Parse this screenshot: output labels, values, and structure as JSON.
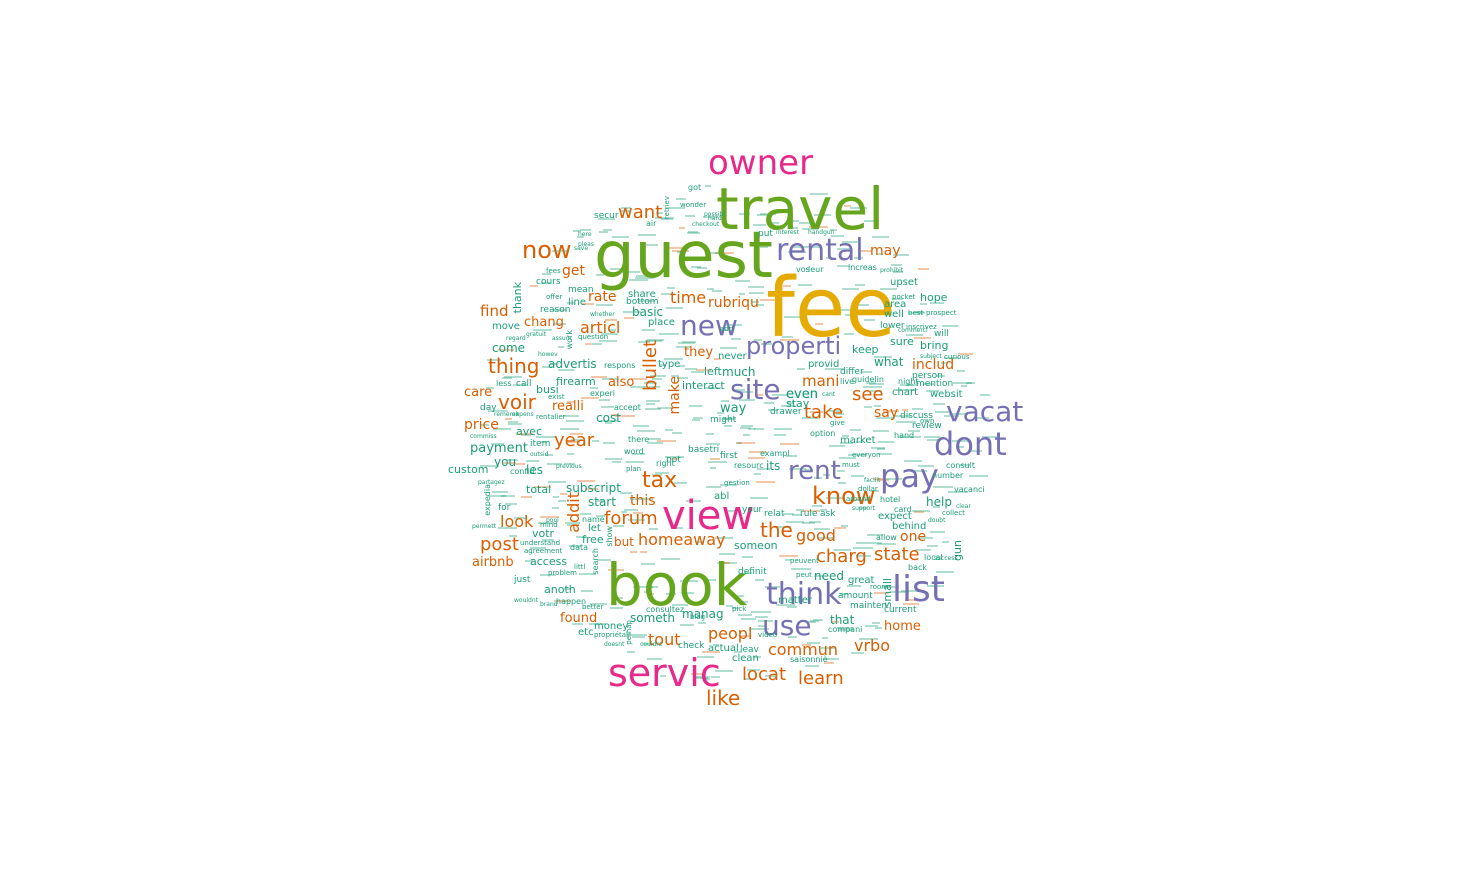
{
  "colors": {
    "teal": "#1b9e77",
    "orange": "#d95f02",
    "purple": "#7570b3",
    "pink": "#e7298a",
    "green": "#66a61e",
    "gold": "#e6ab02"
  },
  "words": [
    {
      "text": "fee",
      "tier": 5
    },
    {
      "text": "guest",
      "tier": 4
    },
    {
      "text": "travel",
      "tier": 4
    },
    {
      "text": "book",
      "tier": 4
    },
    {
      "text": "owner",
      "tier": 3
    },
    {
      "text": "view",
      "tier": 3
    },
    {
      "text": "servic",
      "tier": 3
    },
    {
      "text": "rental",
      "tier": 2
    },
    {
      "text": "new",
      "tier": 2
    },
    {
      "text": "properti",
      "tier": 2
    },
    {
      "text": "site",
      "tier": 2
    },
    {
      "text": "vacat",
      "tier": 2
    },
    {
      "text": "dont",
      "tier": 2
    },
    {
      "text": "pay",
      "tier": 2
    },
    {
      "text": "rent",
      "tier": 2
    },
    {
      "text": "list",
      "tier": 2
    },
    {
      "text": "think",
      "tier": 2
    },
    {
      "text": "use",
      "tier": 2
    },
    {
      "text": "know",
      "tier": 1
    },
    {
      "text": "now",
      "tier": 1
    },
    {
      "text": "want",
      "tier": 1
    },
    {
      "text": "thing",
      "tier": 1
    },
    {
      "text": "voir",
      "tier": 1
    },
    {
      "text": "tax",
      "tier": 1
    },
    {
      "text": "year",
      "tier": 1
    },
    {
      "text": "forum",
      "tier": 1
    },
    {
      "text": "homeaway",
      "tier": 1
    },
    {
      "text": "post",
      "tier": 1
    },
    {
      "text": "look",
      "tier": 1
    },
    {
      "text": "the",
      "tier": 1
    },
    {
      "text": "good",
      "tier": 1
    },
    {
      "text": "charg",
      "tier": 1
    },
    {
      "text": "state",
      "tier": 1
    },
    {
      "text": "vrbo",
      "tier": 1
    },
    {
      "text": "commun",
      "tier": 1
    },
    {
      "text": "peopl",
      "tier": 1
    },
    {
      "text": "locat",
      "tier": 1
    },
    {
      "text": "learn",
      "tier": 1
    },
    {
      "text": "like",
      "tier": 1
    },
    {
      "text": "tout",
      "tier": 1
    },
    {
      "text": "take",
      "tier": 1
    },
    {
      "text": "see",
      "tier": 1
    },
    {
      "text": "mani",
      "tier": 1
    },
    {
      "text": "time",
      "tier": 1
    },
    {
      "text": "rubriqu",
      "tier": 1
    },
    {
      "text": "articl",
      "tier": 1
    },
    {
      "text": "rate",
      "tier": 1
    },
    {
      "text": "get",
      "tier": 1
    },
    {
      "text": "find",
      "tier": 1
    },
    {
      "text": "chang",
      "tier": 1
    },
    {
      "text": "may",
      "tier": 1
    },
    {
      "text": "includ",
      "tier": 1
    },
    {
      "text": "price",
      "tier": 1
    },
    {
      "text": "care",
      "tier": 1
    },
    {
      "text": "they",
      "tier": 1
    },
    {
      "text": "say",
      "tier": 1
    },
    {
      "text": "bullet",
      "tier": 1
    },
    {
      "text": "addit",
      "tier": 1
    },
    {
      "text": "realli",
      "tier": 1
    },
    {
      "text": "also",
      "tier": 1
    },
    {
      "text": "make",
      "tier": 1
    },
    {
      "text": "one",
      "tier": 1
    },
    {
      "text": "airbnb",
      "tier": 1
    },
    {
      "text": "home",
      "tier": 1
    },
    {
      "text": "found",
      "tier": 1
    },
    {
      "text": "this",
      "tier": 1
    },
    {
      "text": "but",
      "tier": 1
    },
    {
      "text": "advertis",
      "tier": 0
    },
    {
      "text": "payment",
      "tier": 0
    },
    {
      "text": "firearm",
      "tier": 0
    },
    {
      "text": "subscript",
      "tier": 0
    },
    {
      "text": "someth",
      "tier": 0
    },
    {
      "text": "someon",
      "tier": 0
    },
    {
      "text": "manag",
      "tier": 0
    },
    {
      "text": "much",
      "tier": 0
    },
    {
      "text": "stay",
      "tier": 0
    },
    {
      "text": "even",
      "tier": 0
    },
    {
      "text": "way",
      "tier": 0
    },
    {
      "text": "left",
      "tier": 0
    },
    {
      "text": "interact",
      "tier": 0
    },
    {
      "text": "basic",
      "tier": 0
    },
    {
      "text": "place",
      "tier": 0
    },
    {
      "text": "come",
      "tier": 0
    },
    {
      "text": "thank",
      "tier": 0
    },
    {
      "text": "cost",
      "tier": 0
    },
    {
      "text": "avec",
      "tier": 0
    },
    {
      "text": "you",
      "tier": 0
    },
    {
      "text": "total",
      "tier": 0
    },
    {
      "text": "les",
      "tier": 0
    },
    {
      "text": "busi",
      "tier": 0
    },
    {
      "text": "custom",
      "tier": 0
    },
    {
      "text": "votr",
      "tier": 0
    },
    {
      "text": "access",
      "tier": 0
    },
    {
      "text": "anoth",
      "tier": 0
    },
    {
      "text": "start",
      "tier": 0
    },
    {
      "text": "free",
      "tier": 0
    },
    {
      "text": "its",
      "tier": 0
    },
    {
      "text": "need",
      "tier": 0
    },
    {
      "text": "matter",
      "tier": 0
    },
    {
      "text": "that",
      "tier": 0
    },
    {
      "text": "hope",
      "tier": 0
    },
    {
      "text": "help",
      "tier": 0
    },
    {
      "text": "what",
      "tier": 0
    },
    {
      "text": "keep",
      "tier": 0
    },
    {
      "text": "provid",
      "tier": 0
    },
    {
      "text": "expect",
      "tier": 0
    },
    {
      "text": "behind",
      "tier": 0
    },
    {
      "text": "great",
      "tier": 0
    },
    {
      "text": "clean",
      "tier": 0
    },
    {
      "text": "actual",
      "tier": 0
    },
    {
      "text": "money",
      "tier": 0
    },
    {
      "text": "etc",
      "tier": 0
    },
    {
      "text": "sure",
      "tier": 0
    },
    {
      "text": "bring",
      "tier": 0
    },
    {
      "text": "well",
      "tier": 0
    },
    {
      "text": "area",
      "tier": 0
    },
    {
      "text": "upset",
      "tier": 0
    },
    {
      "text": "chart",
      "tier": 0
    },
    {
      "text": "websit",
      "tier": 0
    },
    {
      "text": "review",
      "tier": 0
    },
    {
      "text": "discuss",
      "tier": 0
    },
    {
      "text": "market",
      "tier": 0
    },
    {
      "text": "gun",
      "tier": 0
    },
    {
      "text": "local",
      "tier": 0
    },
    {
      "text": "small",
      "tier": 0
    },
    {
      "text": "amount",
      "tier": 0
    },
    {
      "text": "current",
      "tier": 0
    },
    {
      "text": "just",
      "tier": 0
    },
    {
      "text": "let",
      "tier": 0
    },
    {
      "text": "leav",
      "tier": 0
    },
    {
      "text": "check",
      "tier": 0
    },
    {
      "text": "never",
      "tier": 0
    },
    {
      "text": "type",
      "tier": 0
    },
    {
      "text": "line",
      "tier": 0
    },
    {
      "text": "share",
      "tier": 0
    },
    {
      "text": "bottom",
      "tier": 0
    },
    {
      "text": "reason",
      "tier": 0
    },
    {
      "text": "mean",
      "tier": 0
    },
    {
      "text": "cours",
      "tier": 0
    },
    {
      "text": "move",
      "tier": 0
    },
    {
      "text": "day",
      "tier": 0
    },
    {
      "text": "call",
      "tier": 0
    },
    {
      "text": "less",
      "tier": 0
    },
    {
      "text": "item",
      "tier": 0
    },
    {
      "text": "secur",
      "tier": 0
    },
    {
      "text": "air",
      "tier": 0
    },
    {
      "text": "got",
      "tier": 0
    },
    {
      "text": "wonder",
      "tier": 0
    },
    {
      "text": "put",
      "tier": 0
    },
    {
      "text": "increas",
      "tier": 0
    },
    {
      "text": "vos",
      "tier": 0
    },
    {
      "text": "leur",
      "tier": 0
    },
    {
      "text": "pocket",
      "tier": 0
    },
    {
      "text": "lower",
      "tier": 0
    },
    {
      "text": "will",
      "tier": 0
    },
    {
      "text": "person",
      "tier": 0
    },
    {
      "text": "night",
      "tier": 0
    },
    {
      "text": "mention",
      "tier": 0
    },
    {
      "text": "hotel",
      "tier": 0
    },
    {
      "text": "card",
      "tier": 0
    },
    {
      "text": "consult",
      "tier": 0
    },
    {
      "text": "number",
      "tier": 0
    },
    {
      "text": "collect",
      "tier": 0
    },
    {
      "text": "back",
      "tier": 0
    },
    {
      "text": "vacanci",
      "tier": 0
    },
    {
      "text": "compani",
      "tier": 0
    },
    {
      "text": "mainten",
      "tier": 0
    },
    {
      "text": "option",
      "tier": 0
    },
    {
      "text": "drawer",
      "tier": 0
    },
    {
      "text": "relat",
      "tier": 0
    },
    {
      "text": "rule",
      "tier": 0
    },
    {
      "text": "ask",
      "tier": 0
    },
    {
      "text": "definit",
      "tier": 0
    },
    {
      "text": "exampl",
      "tier": 0
    },
    {
      "text": "first",
      "tier": 0
    },
    {
      "text": "basetri",
      "tier": 0
    },
    {
      "text": "not",
      "tier": 0
    },
    {
      "text": "right",
      "tier": 0
    },
    {
      "text": "resourc",
      "tier": 0
    },
    {
      "text": "abl",
      "tier": 0
    },
    {
      "text": "might",
      "tier": 0
    },
    {
      "text": "experi",
      "tier": 0
    },
    {
      "text": "word",
      "tier": 0
    },
    {
      "text": "data",
      "tier": 0
    },
    {
      "text": "agreement",
      "tier": 0
    },
    {
      "text": "problem",
      "tier": 0
    },
    {
      "text": "happen",
      "tier": 0
    },
    {
      "text": "understand",
      "tier": 0
    },
    {
      "text": "littl",
      "tier": 0
    },
    {
      "text": "there",
      "tier": 0
    },
    {
      "text": "respons",
      "tier": 0
    },
    {
      "text": "question",
      "tier": 0
    },
    {
      "text": "consultez",
      "tier": 0
    },
    {
      "text": "video",
      "tier": 0
    },
    {
      "text": "saisonniè",
      "tier": 0
    },
    {
      "text": "differ",
      "tier": 0
    },
    {
      "text": "guidelin",
      "tier": 0
    },
    {
      "text": "live",
      "tier": 0
    },
    {
      "text": "search",
      "tier": 0
    },
    {
      "text": "show",
      "tier": 0
    },
    {
      "text": "name",
      "tier": 0
    },
    {
      "text": "for",
      "tier": 0
    },
    {
      "text": "expedia",
      "tier": 0
    },
    {
      "text": "confid",
      "tier": 0
    },
    {
      "text": "offer",
      "tier": 0
    },
    {
      "text": "exist",
      "tier": 0
    },
    {
      "text": "accept",
      "tier": 0
    },
    {
      "text": "gestion",
      "tier": 0
    },
    {
      "text": "plan",
      "tier": 0
    },
    {
      "text": "mind",
      "tier": 0
    },
    {
      "text": "pick",
      "tier": 0
    },
    {
      "text": "rentalier",
      "tier": 0
    },
    {
      "text": "blog",
      "tier": 0
    },
    {
      "text": "your",
      "tier": 0
    },
    {
      "text": "even",
      "tier": 0
    },
    {
      "text": "add",
      "tier": 0
    },
    {
      "text": "save",
      "tier": 0
    },
    {
      "text": "pool",
      "tier": 0
    },
    {
      "text": "fees",
      "tier": 0
    },
    {
      "text": "here",
      "tier": 0
    },
    {
      "text": "pleas",
      "tier": 0
    },
    {
      "text": "hard",
      "tier": 0
    },
    {
      "text": "checkout",
      "tier": 0
    },
    {
      "text": "handgun",
      "tier": 0
    },
    {
      "text": "prohibit",
      "tier": 0
    },
    {
      "text": "commerci",
      "tier": 0
    },
    {
      "text": "best",
      "tier": 0
    },
    {
      "text": "prospect",
      "tier": 0
    },
    {
      "text": "curious",
      "tier": 0
    },
    {
      "text": "subject",
      "tier": 0
    },
    {
      "text": "inscrivez",
      "tier": 0
    },
    {
      "text": "own",
      "tier": 0
    },
    {
      "text": "hand",
      "tier": 0
    },
    {
      "text": "everyon",
      "tier": 0
    },
    {
      "text": "must",
      "tier": 0
    },
    {
      "text": "facilit",
      "tier": 0
    },
    {
      "text": "dollar",
      "tier": 0
    },
    {
      "text": "around",
      "tier": 0
    },
    {
      "text": "support",
      "tier": 0
    },
    {
      "text": "room",
      "tier": 0
    },
    {
      "text": "doubt",
      "tier": 0
    },
    {
      "text": "allow",
      "tier": 0
    },
    {
      "text": "clear",
      "tier": 0
    },
    {
      "text": "success",
      "tier": 0
    },
    {
      "text": "peuvent",
      "tier": 0
    },
    {
      "text": "couldnt",
      "tier": 0
    },
    {
      "text": "doesnt",
      "tier": 0
    },
    {
      "text": "propriétair",
      "tier": 0
    },
    {
      "text": "perhap",
      "tier": 0
    },
    {
      "text": "better",
      "tier": 0
    },
    {
      "text": "brand",
      "tier": 0
    },
    {
      "text": "wouldnt",
      "tier": 0
    },
    {
      "text": "permett",
      "tier": 0
    },
    {
      "text": "partagez",
      "tier": 0
    },
    {
      "text": "outsid",
      "tier": 0
    },
    {
      "text": "previous",
      "tier": 0
    },
    {
      "text": "commiss",
      "tier": 0
    },
    {
      "text": "rememb",
      "tier": 0
    },
    {
      "text": "expens",
      "tier": 0
    },
    {
      "text": "assum",
      "tier": 0
    },
    {
      "text": "regard",
      "tier": 0
    },
    {
      "text": "gratuit",
      "tier": 0
    },
    {
      "text": "howev",
      "tier": 0
    },
    {
      "text": "whether",
      "tier": 0
    },
    {
      "text": "work",
      "tier": 0
    },
    {
      "text": "interest",
      "tier": 0
    },
    {
      "text": "possibl",
      "tier": 0
    },
    {
      "text": "retriev",
      "tier": 0
    },
    {
      "text": "cant",
      "tier": 0
    },
    {
      "text": "give",
      "tier": 0
    },
    {
      "text": "peut",
      "tier": 0
    }
  ]
}
